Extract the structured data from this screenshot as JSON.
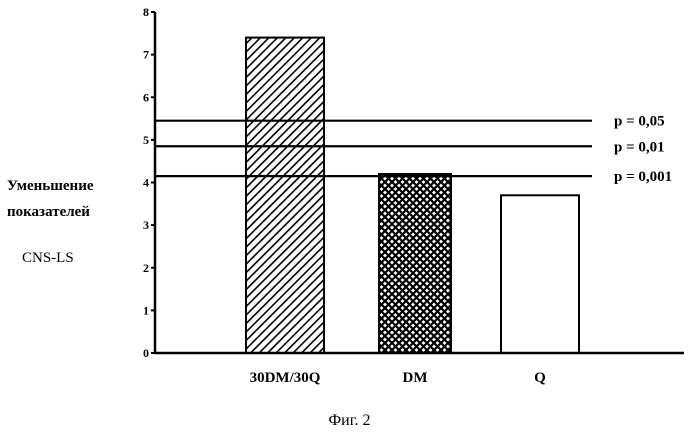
{
  "figure": {
    "caption": "Фиг. 2"
  },
  "chart_data": {
    "type": "bar",
    "title": "",
    "ylabel_lines": [
      "Уменьшение",
      "показателей",
      "CNS-LS"
    ],
    "xlabel": "",
    "categories": [
      "30DM/30Q",
      "DM",
      "Q"
    ],
    "values": [
      7.4,
      4.2,
      3.7
    ],
    "bar_patterns": [
      "diagonal-hatch",
      "crosshatch",
      "none"
    ],
    "ylim": [
      0,
      8
    ],
    "yticks": [
      0,
      1,
      2,
      3,
      4,
      5,
      6,
      7,
      8
    ],
    "grid": false,
    "reference_lines": [
      {
        "value": 5.45,
        "label": "p = 0,05"
      },
      {
        "value": 4.85,
        "label": "p = 0,01"
      },
      {
        "value": 4.15,
        "label": "p = 0,001"
      }
    ]
  }
}
